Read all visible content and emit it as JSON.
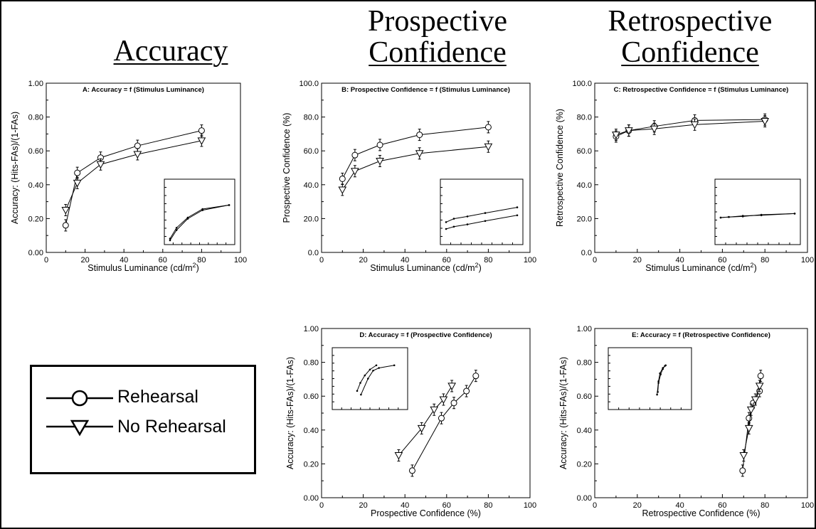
{
  "headings": {
    "accuracy": "Accuracy",
    "prospective_line1": "Prospective",
    "prospective_line2": "Confidence",
    "retrospective_line1": "Retrospective",
    "retrospective_line2": "Confidence"
  },
  "legend": {
    "rehearsal": "Rehearsal",
    "no_rehearsal": "No Rehearsal"
  },
  "chart_data": [
    {
      "id": "A",
      "type": "line",
      "title": "A: Accuracy = f (Stimulus Luminance)",
      "xlabel": "Stimulus Luminance (cd/m",
      "xlabel_sup": "2",
      "xlabel_tail": ")",
      "ylabel": "Accuracy: (Hits-FAs)/(1-FAs)",
      "xlim": [
        0,
        100
      ],
      "ylim": [
        0,
        1
      ],
      "xticks": [
        "0",
        "20",
        "40",
        "60",
        "80",
        "100"
      ],
      "yticks": [
        "0.00",
        "0.20",
        "0.40",
        "0.60",
        "0.80",
        "1.00"
      ],
      "series": [
        {
          "name": "Rehearsal",
          "marker": "circle",
          "x": [
            10,
            16,
            28,
            47,
            80
          ],
          "y": [
            0.16,
            0.47,
            0.56,
            0.63,
            0.72
          ]
        },
        {
          "name": "No Rehearsal",
          "marker": "triangle",
          "x": [
            10,
            16,
            28,
            47,
            80
          ],
          "y": [
            0.25,
            0.41,
            0.52,
            0.58,
            0.66
          ]
        }
      ],
      "inset": {
        "series": [
          {
            "x": [
              0.0,
              0.11,
              0.3,
              0.55,
              1.0
            ],
            "y": [
              0.0,
              0.18,
              0.38,
              0.53,
              0.62
            ]
          },
          {
            "x": [
              0.0,
              0.11,
              0.3,
              0.55,
              1.0
            ],
            "y": [
              0.03,
              0.22,
              0.4,
              0.55,
              0.62
            ]
          }
        ]
      }
    },
    {
      "id": "B",
      "type": "line",
      "title": "B: Prospective Confidence = f (Stimulus Luminance)",
      "xlabel": "Stimulus Luminance (cd/m",
      "xlabel_sup": "2",
      "xlabel_tail": ")",
      "ylabel": "Prospective Confidence (%)",
      "xlim": [
        0,
        100
      ],
      "ylim": [
        0,
        100
      ],
      "xticks": [
        "0",
        "20",
        "40",
        "60",
        "80",
        "100"
      ],
      "yticks": [
        "0.0",
        "20.0",
        "40.0",
        "60.0",
        "80.0",
        "100.0"
      ],
      "series": [
        {
          "name": "Rehearsal",
          "marker": "circle",
          "x": [
            10,
            16,
            28,
            47,
            80
          ],
          "y": [
            43.5,
            57.5,
            63.5,
            69.5,
            74
          ]
        },
        {
          "name": "No Rehearsal",
          "marker": "triangle",
          "x": [
            10,
            16,
            28,
            47,
            80
          ],
          "y": [
            37,
            48,
            54,
            58.5,
            62.5
          ]
        }
      ],
      "inset": {
        "series": [
          {
            "x": [
              0.0,
              0.11,
              0.3,
              0.55,
              1.0
            ],
            "y": [
              0.32,
              0.38,
              0.42,
              0.48,
              0.58
            ]
          },
          {
            "x": [
              0.0,
              0.11,
              0.3,
              0.55,
              1.0
            ],
            "y": [
              0.2,
              0.24,
              0.28,
              0.34,
              0.44
            ]
          }
        ]
      }
    },
    {
      "id": "C",
      "type": "line",
      "title": "C: Retrospective Confidence = f (Stimulus Luminance)",
      "xlabel": "Stimulus Luminance (cd/m",
      "xlabel_sup": "2",
      "xlabel_tail": ")",
      "ylabel": "Retrospective Confidence (%)",
      "xlim": [
        0,
        100
      ],
      "ylim": [
        0,
        100
      ],
      "xticks": [
        "0",
        "20",
        "40",
        "60",
        "80",
        "100"
      ],
      "yticks": [
        "0.0",
        "20.0",
        "40.0",
        "60.0",
        "80.0",
        "100.0"
      ],
      "series": [
        {
          "name": "Rehearsal",
          "marker": "circle",
          "x": [
            10,
            16,
            28,
            47,
            80
          ],
          "y": [
            68.5,
            72,
            74.5,
            78,
            78.5
          ]
        },
        {
          "name": "No Rehearsal",
          "marker": "triangle",
          "x": [
            10,
            16,
            28,
            47,
            80
          ],
          "y": [
            69.5,
            72,
            73,
            75.5,
            77.5
          ]
        }
      ],
      "inset": {
        "series": [
          {
            "x": [
              0.0,
              0.11,
              0.3,
              0.55,
              1.0
            ],
            "y": [
              0.4,
              0.41,
              0.42,
              0.45,
              0.47
            ]
          },
          {
            "x": [
              0.0,
              0.11,
              0.3,
              0.55,
              1.0
            ],
            "y": [
              0.4,
              0.41,
              0.43,
              0.44,
              0.47
            ]
          }
        ]
      }
    },
    {
      "id": "D",
      "type": "line",
      "title": "D: Accuracy = f (Prospective Confidence)",
      "xlabel": "Prospective Confidence (%)",
      "xlabel_sup": "",
      "xlabel_tail": "",
      "ylabel": "Accuracy: (Hits-FAs)/(1-FAs)",
      "xlim": [
        0,
        100
      ],
      "ylim": [
        0,
        1
      ],
      "xticks": [
        "0",
        "20",
        "40",
        "60",
        "80",
        "100"
      ],
      "yticks": [
        "0.00",
        "0.20",
        "0.40",
        "0.60",
        "0.80",
        "1.00"
      ],
      "series": [
        {
          "name": "Rehearsal",
          "marker": "circle",
          "x": [
            43.5,
            57.5,
            63.5,
            69.5,
            74
          ],
          "y": [
            0.16,
            0.47,
            0.56,
            0.63,
            0.72
          ]
        },
        {
          "name": "No Rehearsal",
          "marker": "triangle",
          "x": [
            37,
            48,
            54,
            58.5,
            62.5
          ],
          "y": [
            0.25,
            0.41,
            0.52,
            0.58,
            0.66
          ]
        }
      ],
      "inset": {
        "series": [
          {
            "x": [
              0.36,
              0.47,
              0.55,
              0.64,
              0.88
            ],
            "y": [
              0.2,
              0.5,
              0.65,
              0.7,
              0.75
            ]
          },
          {
            "x": [
              0.3,
              0.35,
              0.42,
              0.5,
              0.6
            ],
            "y": [
              0.27,
              0.42,
              0.56,
              0.67,
              0.75
            ]
          }
        ]
      }
    },
    {
      "id": "E",
      "type": "line",
      "title": "E: Accuracy = f (Retrospective Confidence)",
      "xlabel": "Retrospective Confidence (%)",
      "xlabel_sup": "",
      "xlabel_tail": "",
      "ylabel": "Accuracy: (Hits-FAs)/(1-FAs)",
      "xlim": [
        0,
        100
      ],
      "ylim": [
        0,
        1
      ],
      "xticks": [
        "0",
        "20",
        "40",
        "60",
        "80",
        "100"
      ],
      "yticks": [
        "0.00",
        "0.20",
        "0.40",
        "0.60",
        "0.80",
        "1.00"
      ],
      "series": [
        {
          "name": "Rehearsal",
          "marker": "circle",
          "x": [
            69.5,
            72.5,
            74.5,
            77.5,
            78
          ],
          "y": [
            0.16,
            0.47,
            0.56,
            0.63,
            0.72
          ]
        },
        {
          "name": "No Rehearsal",
          "marker": "triangle",
          "x": [
            70,
            72.5,
            73.5,
            75.5,
            77.5
          ],
          "y": [
            0.25,
            0.41,
            0.52,
            0.58,
            0.66
          ]
        }
      ],
      "inset": {
        "series": [
          {
            "x": [
              0.6,
              0.62,
              0.64,
              0.68,
              0.72
            ],
            "y": [
              0.2,
              0.45,
              0.6,
              0.7,
              0.75
            ]
          },
          {
            "x": [
              0.61,
              0.62,
              0.65,
              0.68,
              0.71
            ],
            "y": [
              0.25,
              0.42,
              0.58,
              0.68,
              0.74
            ]
          }
        ]
      }
    }
  ]
}
